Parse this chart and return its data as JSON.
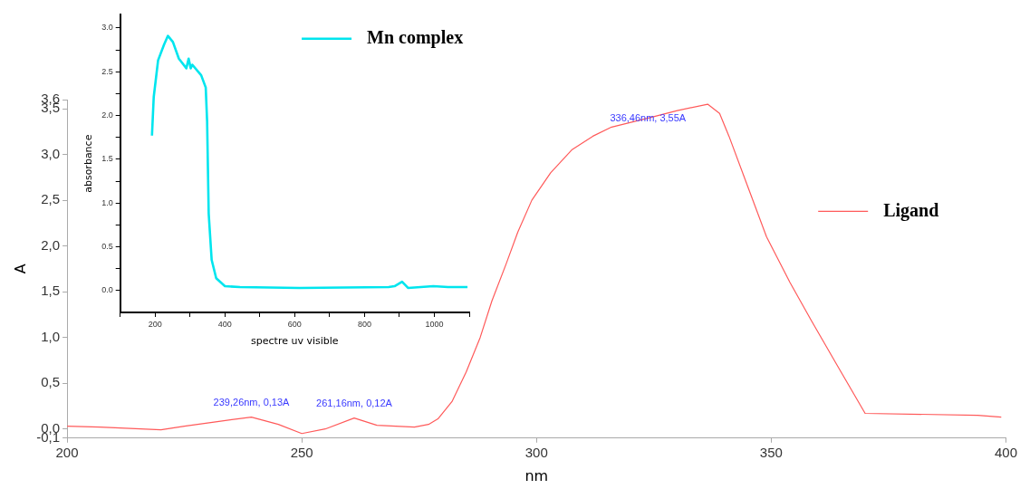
{
  "chart_data": [
    {
      "type": "line",
      "xlabel": "nm",
      "ylabel": "A",
      "xlim": [
        200,
        400
      ],
      "xticks": [
        200,
        250,
        300,
        350,
        400
      ],
      "ylim": [
        -0.1,
        3.6
      ],
      "yticks": [
        {
          "value": -0.1,
          "label": "-0,1"
        },
        {
          "value": 0,
          "label": "0,0"
        },
        {
          "value": 0.5,
          "label": "0,5"
        },
        {
          "value": 1,
          "label": "1,0"
        },
        {
          "value": 1.5,
          "label": "1,5"
        },
        {
          "value": 2,
          "label": "2,0"
        },
        {
          "value": 2.5,
          "label": "2,5"
        },
        {
          "value": 3,
          "label": "3,0"
        },
        {
          "value": 3.5,
          "label": "3,5"
        },
        {
          "value": 3.6,
          "label": "3,6"
        }
      ],
      "legend": "right",
      "series": [
        {
          "name": "Ligand",
          "color": "#ff5a5a",
          "x": [
            200,
            207,
            220,
            225,
            232,
            239.26,
            245,
            250,
            255,
            261.16,
            266,
            274,
            277,
            279,
            282,
            285,
            288,
            290.5,
            293.5,
            296,
            299,
            303,
            307.5,
            312,
            316,
            324,
            330,
            336.46,
            339,
            341,
            345,
            349,
            354,
            358.6,
            364,
            370,
            394,
            399
          ],
          "values": [
            0.03,
            0.02,
            -0.01,
            0.03,
            0.08,
            0.13,
            0.05,
            -0.05,
            0.0,
            0.12,
            0.04,
            0.02,
            0.05,
            0.11,
            0.3,
            0.62,
            1.0,
            1.4,
            1.8,
            2.15,
            2.5,
            2.8,
            3.05,
            3.2,
            3.3,
            3.4,
            3.48,
            3.55,
            3.45,
            3.2,
            2.65,
            2.1,
            1.6,
            1.18,
            0.7,
            0.17,
            0.15,
            0.13
          ]
        }
      ],
      "annotations": [
        {
          "text": "239,26nm, 0,13A",
          "x": 239.26,
          "y": 0.13
        },
        {
          "text": "261,16nm, 0,12A",
          "x": 261.16,
          "y": 0.12
        },
        {
          "text": "336,46nm, 3,55A",
          "x": 336.46,
          "y": 3.55
        }
      ]
    },
    {
      "type": "line",
      "xlabel": "spectre uv visible",
      "ylabel": "absorbance",
      "xlim": [
        100,
        1100
      ],
      "xticks": [
        {
          "value": 100,
          "label": null
        },
        200,
        {
          "value": 300,
          "label": null
        },
        400,
        {
          "value": 500,
          "label": null
        },
        600,
        {
          "value": 700,
          "label": null
        },
        800,
        {
          "value": 900,
          "label": null
        },
        1000,
        {
          "value": 1100,
          "label": null
        }
      ],
      "ylim": [
        -0.25,
        3.15
      ],
      "yticks": [
        {
          "value": 0,
          "label": "0.0"
        },
        {
          "value": 0.25,
          "label": null
        },
        {
          "value": 0.5,
          "label": "0.5"
        },
        {
          "value": 0.75,
          "label": null
        },
        {
          "value": 1,
          "label": "1.0"
        },
        {
          "value": 1.25,
          "label": null
        },
        {
          "value": 1.5,
          "label": "1.5"
        },
        {
          "value": 1.75,
          "label": null
        },
        {
          "value": 2,
          "label": "2.0"
        },
        {
          "value": 2.25,
          "label": null
        },
        {
          "value": 2.5,
          "label": "2.5"
        },
        {
          "value": 2.75,
          "label": null
        },
        {
          "value": 3,
          "label": "3.0"
        }
      ],
      "legend": "top right",
      "series": [
        {
          "name": "Mn complex",
          "color": "#00e5ee",
          "x": [
            191,
            196,
            208.5,
            225.6,
            236.7,
            251,
            268,
            289.5,
            296,
            302,
            306.6,
            332,
            345,
            349,
            353.5,
            362,
            375,
            400,
            443,
            613.5,
            869,
            886,
            907.6,
            924.6,
            997,
            1039.6,
            1095
          ],
          "values": [
            1.77,
            2.21,
            2.63,
            2.81,
            2.91,
            2.84,
            2.65,
            2.54,
            2.65,
            2.54,
            2.58,
            2.46,
            2.32,
            1.93,
            0.88,
            0.35,
            0.14,
            0.05,
            0.04,
            0.03,
            0.04,
            0.05,
            0.1,
            0.03,
            0.05,
            0.04,
            0.04
          ]
        }
      ]
    }
  ]
}
